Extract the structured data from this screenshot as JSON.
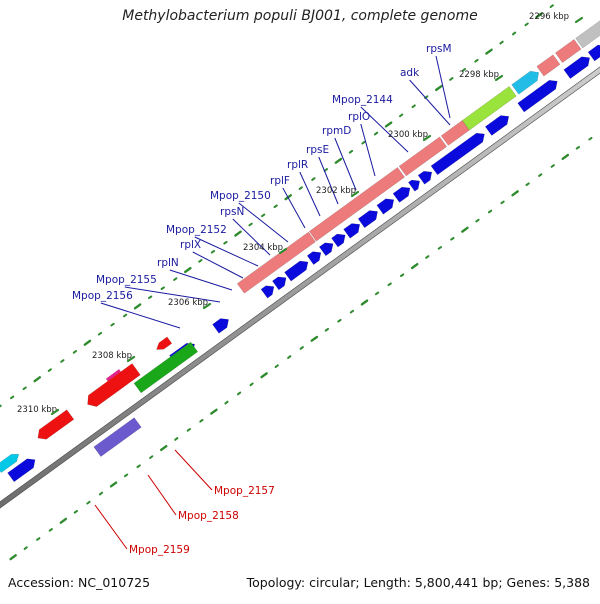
{
  "title": "Methylobacterium populi BJ001, complete genome",
  "footer": {
    "accession": "Accession: NC_010725",
    "summary": "Topology: circular; Length: 5,800,441 bp; Genes: 5,388"
  },
  "colors": {
    "backbone": "#8a8a8a",
    "tick": "#2e8b2e",
    "forward_cds": "#0a0adc",
    "label_forward": "#1a1aa0",
    "label_reverse": "#cc0000",
    "leader_forward": "#1a1aa0",
    "leader_reverse": "#cc0000"
  },
  "kbp_labels": [
    "2296 kbp",
    "2298 kbp",
    "2300 kbp",
    "2302 kbp",
    "2304 kbp",
    "2306 kbp",
    "2308 kbp",
    "2310 kbp"
  ],
  "gene_labels": [
    {
      "name": "rpsM",
      "strand": "forward"
    },
    {
      "name": "adk",
      "strand": "forward"
    },
    {
      "name": "Mpop_2144",
      "strand": "forward"
    },
    {
      "name": "rplO",
      "strand": "forward"
    },
    {
      "name": "rpmD",
      "strand": "forward"
    },
    {
      "name": "rpsE",
      "strand": "forward"
    },
    {
      "name": "rplR",
      "strand": "forward"
    },
    {
      "name": "rplF",
      "strand": "forward"
    },
    {
      "name": "Mpop_2150",
      "strand": "forward"
    },
    {
      "name": "rpsN",
      "strand": "forward"
    },
    {
      "name": "Mpop_2152",
      "strand": "forward"
    },
    {
      "name": "rplX",
      "strand": "forward"
    },
    {
      "name": "rplN",
      "strand": "forward"
    },
    {
      "name": "Mpop_2155",
      "strand": "forward"
    },
    {
      "name": "Mpop_2156",
      "strand": "forward"
    },
    {
      "name": "Mpop_2157",
      "strand": "reverse"
    },
    {
      "name": "Mpop_2158",
      "strand": "reverse"
    },
    {
      "name": "Mpop_2159",
      "strand": "reverse"
    }
  ]
}
